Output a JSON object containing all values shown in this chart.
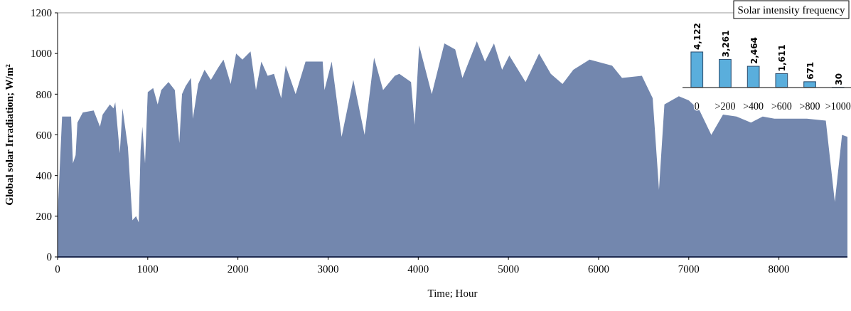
{
  "chart_data": [
    {
      "type": "area",
      "xlabel": "Time; Hour",
      "ylabel": "Global solar Irradiation; W/m²",
      "xlim": [
        0,
        8760
      ],
      "ylim": [
        0,
        1200
      ],
      "xticks": [
        0,
        1000,
        2000,
        3000,
        4000,
        5000,
        6000,
        7000,
        8000
      ],
      "yticks": [
        0,
        200,
        400,
        600,
        800,
        1000,
        1200
      ],
      "x": [
        0,
        50,
        150,
        170,
        200,
        220,
        280,
        400,
        470,
        500,
        580,
        620,
        640,
        690,
        720,
        780,
        830,
        870,
        900,
        920,
        940,
        970,
        1000,
        1060,
        1110,
        1150,
        1230,
        1300,
        1350,
        1380,
        1420,
        1480,
        1500,
        1560,
        1630,
        1700,
        1780,
        1840,
        1920,
        1980,
        2050,
        2140,
        2200,
        2260,
        2330,
        2400,
        2480,
        2530,
        2640,
        2750,
        2860,
        2940,
        2960,
        3040,
        3150,
        3280,
        3405,
        3510,
        3610,
        3740,
        3790,
        3920,
        3960,
        4010,
        4150,
        4290,
        4410,
        4490,
        4650,
        4740,
        4840,
        4930,
        5010,
        5190,
        5340,
        5470,
        5600,
        5720,
        5900,
        6150,
        6260,
        6480,
        6600,
        6670,
        6730,
        6890,
        7000,
        7120,
        7250,
        7380,
        7530,
        7690,
        7820,
        7950,
        8110,
        8310,
        8520,
        8620,
        8700,
        8760
      ],
      "series": [
        {
          "color": "#7387ae",
          "values": [
            200,
            690,
            690,
            460,
            500,
            660,
            710,
            720,
            640,
            700,
            750,
            730,
            760,
            510,
            730,
            540,
            180,
            200,
            170,
            520,
            640,
            460,
            810,
            830,
            750,
            820,
            860,
            820,
            560,
            800,
            840,
            880,
            680,
            850,
            920,
            870,
            930,
            970,
            850,
            1000,
            970,
            1010,
            820,
            960,
            890,
            900,
            780,
            940,
            800,
            960,
            960,
            960,
            820,
            960,
            590,
            870,
            600,
            980,
            820,
            890,
            900,
            860,
            650,
            1040,
            800,
            1050,
            1020,
            880,
            1060,
            960,
            1050,
            920,
            990,
            860,
            1000,
            900,
            850,
            920,
            970,
            940,
            880,
            890,
            780,
            330,
            750,
            790,
            770,
            720,
            600,
            700,
            690,
            660,
            690,
            680,
            680,
            680,
            670,
            270,
            600,
            590
          ]
        }
      ]
    },
    {
      "type": "bar",
      "title": "Solar intensity frequency",
      "categories": [
        "0",
        ">200",
        ">400",
        ">600",
        ">800",
        ">1000"
      ],
      "values": [
        4122,
        3261,
        2464,
        1611,
        671,
        30
      ],
      "value_labels": [
        "4,122",
        "3,261",
        "2,464",
        "1,611",
        "671",
        "30"
      ],
      "color": "#5aaedc"
    }
  ]
}
